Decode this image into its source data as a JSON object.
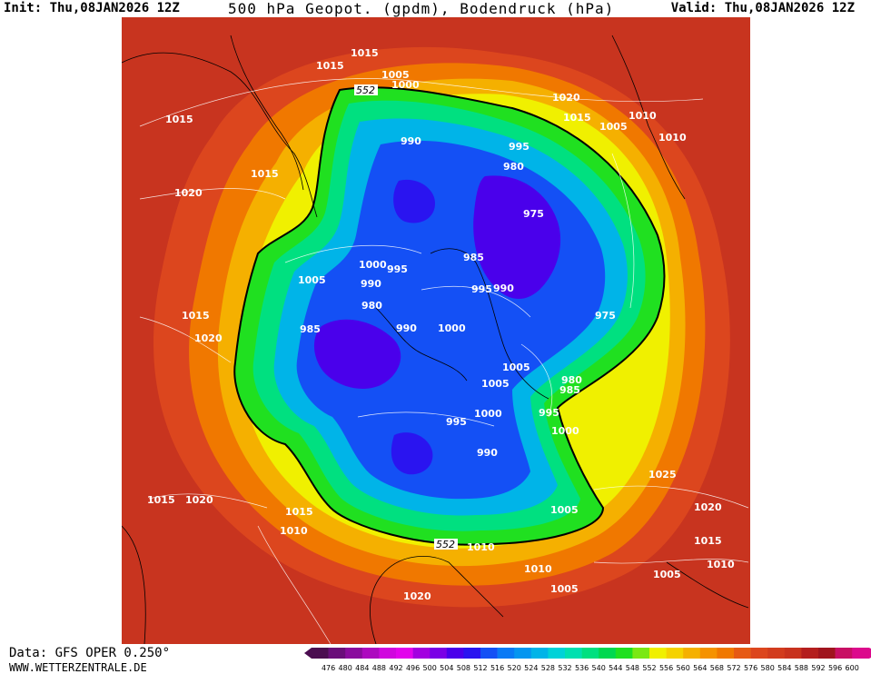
{
  "header": {
    "init": "Init: Thu,08JAN2026 12Z",
    "title": "500 hPa Geopot. (gpdm), Bodendruck (hPa)",
    "valid": "Valid: Thu,08JAN2026 12Z"
  },
  "footer": {
    "source": "Data: GFS OPER 0.250°",
    "website": "WWW.WETTERZENTRALE.DE"
  },
  "colors": {
    "land_ocean_background": "#c8341f",
    "contour_line": "#ffffff",
    "coastline": "#000000",
    "highlight_contour": "#000000"
  },
  "highlighted_contour": {
    "value": "552",
    "labels": [
      "552",
      "552"
    ]
  },
  "pressure_labels": [
    {
      "id": "p1",
      "text": "1015"
    },
    {
      "id": "p2",
      "text": "1015"
    },
    {
      "id": "p3",
      "text": "1005"
    },
    {
      "id": "p4",
      "text": "1000"
    },
    {
      "id": "p5",
      "text": "1020"
    },
    {
      "id": "p6",
      "text": "1015"
    },
    {
      "id": "p7",
      "text": "1010"
    },
    {
      "id": "p8",
      "text": "1005"
    },
    {
      "id": "p9",
      "text": "1010"
    },
    {
      "id": "p10",
      "text": "1015"
    },
    {
      "id": "p11",
      "text": "990"
    },
    {
      "id": "p12",
      "text": "995"
    },
    {
      "id": "p13",
      "text": "980"
    },
    {
      "id": "p14",
      "text": "1015"
    },
    {
      "id": "p15",
      "text": "975"
    },
    {
      "id": "p16",
      "text": "1020"
    },
    {
      "id": "p17",
      "text": "985"
    },
    {
      "id": "p18",
      "text": "1000"
    },
    {
      "id": "p19",
      "text": "995"
    },
    {
      "id": "p20",
      "text": "1005"
    },
    {
      "id": "p21",
      "text": "990"
    },
    {
      "id": "p22",
      "text": "995"
    },
    {
      "id": "p23",
      "text": "990"
    },
    {
      "id": "p24",
      "text": "980"
    },
    {
      "id": "p25",
      "text": "975"
    },
    {
      "id": "p26",
      "text": "1015"
    },
    {
      "id": "p27",
      "text": "985"
    },
    {
      "id": "p28",
      "text": "990"
    },
    {
      "id": "p29",
      "text": "1000"
    },
    {
      "id": "p30",
      "text": "1020"
    },
    {
      "id": "p31",
      "text": "1005"
    },
    {
      "id": "p32",
      "text": "980"
    },
    {
      "id": "p33",
      "text": "985"
    },
    {
      "id": "p34",
      "text": "1005"
    },
    {
      "id": "p35",
      "text": "1000"
    },
    {
      "id": "p36",
      "text": "995"
    },
    {
      "id": "p37",
      "text": "995"
    },
    {
      "id": "p38",
      "text": "1000"
    },
    {
      "id": "p39",
      "text": "990"
    },
    {
      "id": "p40",
      "text": "1025"
    },
    {
      "id": "p41",
      "text": "1015"
    },
    {
      "id": "p42",
      "text": "1020"
    },
    {
      "id": "p43",
      "text": "1020"
    },
    {
      "id": "p44",
      "text": "1015"
    },
    {
      "id": "p45",
      "text": "1010"
    },
    {
      "id": "p46",
      "text": "1005"
    },
    {
      "id": "p47",
      "text": "1010"
    },
    {
      "id": "p48",
      "text": "1015"
    },
    {
      "id": "p49",
      "text": "1010"
    },
    {
      "id": "p50",
      "text": "1010"
    },
    {
      "id": "p51",
      "text": "1005"
    },
    {
      "id": "p52",
      "text": "1005"
    },
    {
      "id": "p53",
      "text": "1020"
    }
  ],
  "scale": {
    "labels": [
      "476",
      "480",
      "484",
      "488",
      "492",
      "496",
      "500",
      "504",
      "508",
      "512",
      "516",
      "520",
      "524",
      "528",
      "532",
      "536",
      "540",
      "544",
      "548",
      "552",
      "556",
      "560",
      "564",
      "568",
      "572",
      "576",
      "580",
      "584",
      "588",
      "592",
      "596",
      "600"
    ],
    "colors": [
      "#4b0d50",
      "#6a0d7a",
      "#8a0b9e",
      "#ad09bf",
      "#d006de",
      "#e203ec",
      "#a300e0",
      "#7a00e6",
      "#4a00eb",
      "#2a14f0",
      "#1450f5",
      "#0a7af5",
      "#0596f0",
      "#00b4e8",
      "#00d2d8",
      "#00e0b0",
      "#00e080",
      "#00d850",
      "#20e020",
      "#7ae814",
      "#f0f000",
      "#f5d200",
      "#f5b000",
      "#f59200",
      "#f07800",
      "#e65a14",
      "#dc461e",
      "#d23c1e",
      "#c8321e",
      "#b41e1e",
      "#a0141e",
      "#c80f64",
      "#dc0a8c"
    ]
  }
}
